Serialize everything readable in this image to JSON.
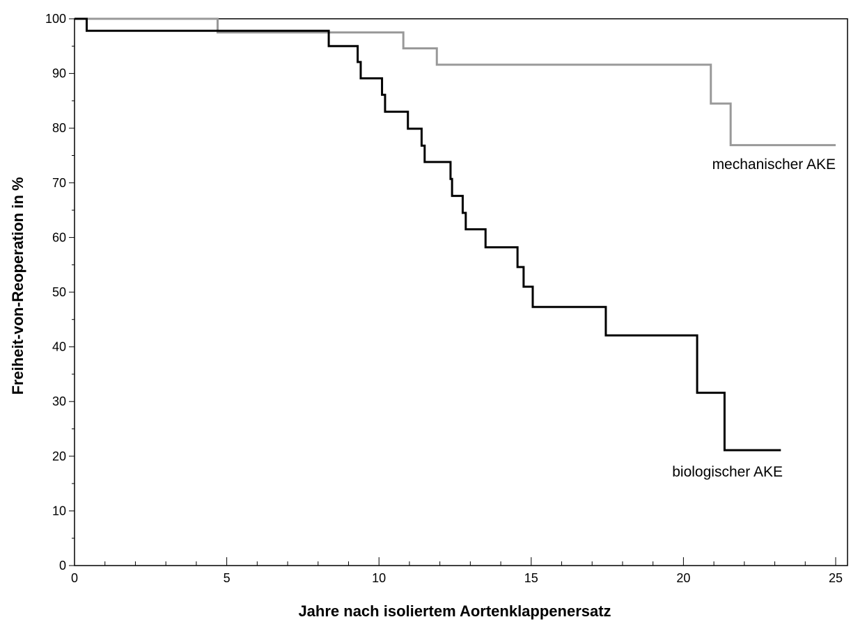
{
  "chart_data": {
    "type": "line",
    "title": "",
    "xlabel": "Jahre nach isoliertem Aortenklappenersatz",
    "ylabel": "Freiheit-von-Reoperation in %",
    "xlim": [
      0,
      25
    ],
    "ylim": [
      0,
      100
    ],
    "x_ticks": [
      "0",
      "5",
      "10",
      "15",
      "20",
      "25"
    ],
    "y_ticks": [
      "0",
      "10",
      "20",
      "30",
      "40",
      "50",
      "60",
      "70",
      "80",
      "90",
      "100"
    ],
    "grid": false,
    "series": [
      {
        "name": "mechanischer AKE",
        "color": "#999999",
        "step": true,
        "x": [
          0,
          4.7,
          10.8,
          11.9,
          20.9,
          21.55,
          25.0
        ],
        "y": [
          100,
          97.5,
          94.6,
          91.6,
          84.5,
          76.9,
          76.9
        ]
      },
      {
        "name": "biologischer AKE",
        "color": "#000000",
        "step": true,
        "x": [
          0,
          0.4,
          8.35,
          9.3,
          9.4,
          10.1,
          10.2,
          10.95,
          11.4,
          11.5,
          12.35,
          12.4,
          12.75,
          12.85,
          13.5,
          14.55,
          14.75,
          15.05,
          17.45,
          20.45,
          21.35,
          23.2
        ],
        "y": [
          100,
          97.8,
          95.0,
          92.1,
          89.1,
          86.1,
          83.0,
          79.9,
          76.8,
          73.8,
          70.7,
          67.6,
          64.5,
          61.5,
          58.2,
          54.6,
          51.0,
          47.3,
          42.1,
          31.6,
          21.1,
          21.1
        ]
      }
    ]
  }
}
